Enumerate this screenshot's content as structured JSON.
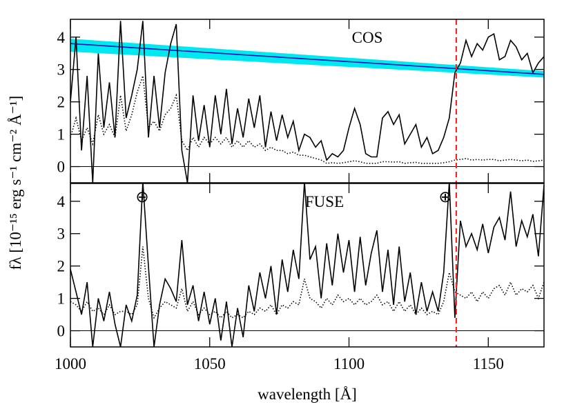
{
  "ylabel": "fλ [10⁻¹⁵ erg s⁻¹ cm⁻² Å⁻¹]",
  "chart_data": [
    {
      "type": "line",
      "annotations": [
        "COS"
      ],
      "xlim": [
        1000,
        1170
      ],
      "ylim": [
        -0.5,
        4.55
      ],
      "xticks": [
        1000,
        1050,
        1100,
        1150
      ],
      "yticks": [
        0,
        1,
        2,
        3,
        4
      ],
      "hlines": [
        0
      ],
      "vlines": [
        1138.5
      ],
      "vline_color": "#ff2020",
      "x": [
        1000,
        1002,
        1004,
        1006,
        1008,
        1010,
        1012,
        1014,
        1016,
        1018,
        1020,
        1022,
        1024,
        1026,
        1028,
        1030,
        1032,
        1034,
        1036,
        1038,
        1040,
        1042,
        1044,
        1046,
        1048,
        1050,
        1052,
        1054,
        1056,
        1058,
        1060,
        1062,
        1064,
        1066,
        1068,
        1070,
        1072,
        1074,
        1076,
        1078,
        1080,
        1082,
        1084,
        1086,
        1088,
        1090,
        1092,
        1094,
        1096,
        1098,
        1100,
        1102,
        1104,
        1106,
        1108,
        1110,
        1112,
        1114,
        1116,
        1118,
        1120,
        1122,
        1124,
        1126,
        1128,
        1130,
        1132,
        1134,
        1136,
        1138,
        1140,
        1142,
        1144,
        1146,
        1148,
        1150,
        1152,
        1154,
        1156,
        1158,
        1160,
        1162,
        1164,
        1166,
        1168,
        1170
      ],
      "series": [
        {
          "color": "#000000",
          "style": "solid",
          "values": [
            2.0,
            4.0,
            0.5,
            2.8,
            -0.5,
            3.5,
            1.2,
            2.6,
            0.9,
            4.5,
            1.5,
            2.2,
            3.0,
            4.5,
            0.9,
            2.8,
            1.2,
            2.9,
            3.8,
            4.4,
            0.5,
            -0.5,
            2.2,
            0.8,
            1.9,
            0.6,
            2.2,
            1.0,
            2.4,
            0.7,
            1.8,
            0.9,
            2.1,
            1.2,
            2.2,
            0.6,
            1.7,
            0.8,
            1.6,
            0.9,
            1.4,
            0.5,
            1.0,
            0.9,
            0.6,
            0.8,
            0.2,
            0.4,
            0.3,
            0.5,
            1.2,
            1.8,
            1.3,
            0.4,
            0.3,
            0.3,
            1.5,
            1.7,
            1.3,
            1.6,
            0.7,
            1.0,
            1.3,
            0.6,
            0.9,
            0.4,
            0.5,
            0.9,
            1.5,
            2.9,
            3.2,
            3.9,
            3.4,
            3.8,
            3.6,
            4.0,
            4.1,
            3.3,
            3.4,
            3.9,
            3.7,
            3.3,
            3.5,
            2.9,
            3.2,
            3.4
          ]
        },
        {
          "color": "#000000",
          "style": "dotted",
          "values": [
            0.9,
            1.5,
            0.8,
            1.2,
            0.7,
            1.6,
            1.0,
            1.3,
            0.9,
            2.2,
            1.1,
            1.6,
            2.3,
            2.8,
            1.2,
            1.4,
            1.1,
            1.6,
            1.8,
            2.2,
            0.8,
            0.5,
            0.9,
            0.6,
            0.9,
            0.7,
            0.9,
            0.7,
            0.9,
            0.6,
            0.8,
            0.6,
            0.8,
            0.6,
            0.7,
            0.5,
            0.6,
            0.5,
            0.5,
            0.4,
            0.45,
            0.35,
            0.35,
            0.3,
            0.25,
            0.2,
            0.1,
            0.12,
            0.1,
            0.12,
            0.15,
            0.18,
            0.15,
            0.1,
            0.1,
            0.1,
            0.15,
            0.15,
            0.14,
            0.15,
            0.1,
            0.12,
            0.13,
            0.1,
            0.1,
            0.1,
            0.1,
            0.12,
            0.15,
            0.2,
            0.22,
            0.25,
            0.2,
            0.22,
            0.2,
            0.22,
            0.22,
            0.18,
            0.2,
            0.22,
            0.2,
            0.18,
            0.2,
            0.16,
            0.18,
            0.2
          ]
        },
        {
          "color": "#1010b0",
          "style": "solid",
          "x": [
            1000,
            1170
          ],
          "values": [
            3.8,
            2.85
          ],
          "band_lower": [
            3.55,
            2.75
          ],
          "band_upper": [
            3.95,
            2.95
          ],
          "band_color": "#00e8f0"
        }
      ]
    },
    {
      "type": "line",
      "annotations": [
        "FUSE",
        "⊕",
        "⊕"
      ],
      "xlabel": "wavelength [Å]",
      "xlim": [
        1000,
        1170
      ],
      "ylim": [
        -0.5,
        4.55
      ],
      "xticks": [
        1000,
        1050,
        1100,
        1150
      ],
      "yticks": [
        0,
        1,
        2,
        3,
        4
      ],
      "hlines": [
        0
      ],
      "vlines": [
        1138.5
      ],
      "vline_color": "#ff2020",
      "x": [
        1000,
        1002,
        1004,
        1006,
        1008,
        1010,
        1012,
        1014,
        1016,
        1018,
        1020,
        1022,
        1024,
        1026,
        1028,
        1030,
        1032,
        1034,
        1036,
        1038,
        1040,
        1042,
        1044,
        1046,
        1048,
        1050,
        1052,
        1054,
        1056,
        1058,
        1060,
        1062,
        1064,
        1066,
        1068,
        1070,
        1072,
        1074,
        1076,
        1078,
        1080,
        1082,
        1084,
        1086,
        1088,
        1090,
        1092,
        1094,
        1096,
        1098,
        1100,
        1102,
        1104,
        1106,
        1108,
        1110,
        1112,
        1114,
        1116,
        1118,
        1120,
        1122,
        1124,
        1126,
        1128,
        1130,
        1132,
        1134,
        1136,
        1138,
        1140,
        1142,
        1144,
        1146,
        1148,
        1150,
        1152,
        1154,
        1156,
        1158,
        1160,
        1162,
        1164,
        1166,
        1168,
        1170
      ],
      "series": [
        {
          "color": "#000000",
          "style": "solid",
          "values": [
            1.9,
            1.2,
            0.5,
            1.5,
            -0.5,
            1.0,
            0.3,
            1.2,
            0.2,
            -0.5,
            0.8,
            0.3,
            1.1,
            4.6,
            2.0,
            -0.5,
            0.8,
            1.6,
            1.3,
            0.9,
            2.8,
            0.8,
            1.4,
            0.3,
            1.2,
            0.2,
            1.0,
            -0.3,
            0.9,
            -0.5,
            0.7,
            -0.2,
            1.4,
            0.6,
            1.8,
            1.0,
            2.0,
            0.5,
            2.2,
            1.2,
            2.5,
            1.6,
            4.6,
            2.2,
            2.6,
            1.0,
            2.7,
            1.4,
            3.0,
            1.8,
            2.8,
            1.2,
            2.9,
            1.4,
            2.4,
            3.1,
            1.2,
            2.5,
            0.8,
            2.6,
            0.9,
            1.8,
            0.5,
            1.5,
            0.6,
            1.2,
            0.6,
            1.8,
            4.6,
            0.4,
            3.4,
            2.6,
            3.0,
            2.5,
            3.3,
            2.4,
            3.2,
            3.5,
            2.8,
            4.3,
            2.6,
            3.4,
            2.9,
            3.6,
            2.3,
            4.5
          ]
        },
        {
          "color": "#000000",
          "style": "dotted",
          "values": [
            0.9,
            0.8,
            0.6,
            0.9,
            0.6,
            0.7,
            0.5,
            0.8,
            0.5,
            0.6,
            0.6,
            0.5,
            0.8,
            2.6,
            1.0,
            0.4,
            0.7,
            0.9,
            0.8,
            0.7,
            1.3,
            0.6,
            0.9,
            0.5,
            0.7,
            0.5,
            0.6,
            0.4,
            0.6,
            0.4,
            0.5,
            0.4,
            0.6,
            0.5,
            0.7,
            0.6,
            0.8,
            0.5,
            0.8,
            0.7,
            0.9,
            0.8,
            1.6,
            1.0,
            0.9,
            0.7,
            1.0,
            0.8,
            1.1,
            0.9,
            1.0,
            0.8,
            1.0,
            0.8,
            0.9,
            1.1,
            0.8,
            0.9,
            0.6,
            0.9,
            0.6,
            0.8,
            0.5,
            0.7,
            0.5,
            0.6,
            0.5,
            0.9,
            1.8,
            1.2,
            1.1,
            1.0,
            1.2,
            0.9,
            1.2,
            1.0,
            1.3,
            1.4,
            1.1,
            1.5,
            1.1,
            1.3,
            1.2,
            1.4,
            1.0,
            1.5
          ]
        }
      ]
    }
  ]
}
